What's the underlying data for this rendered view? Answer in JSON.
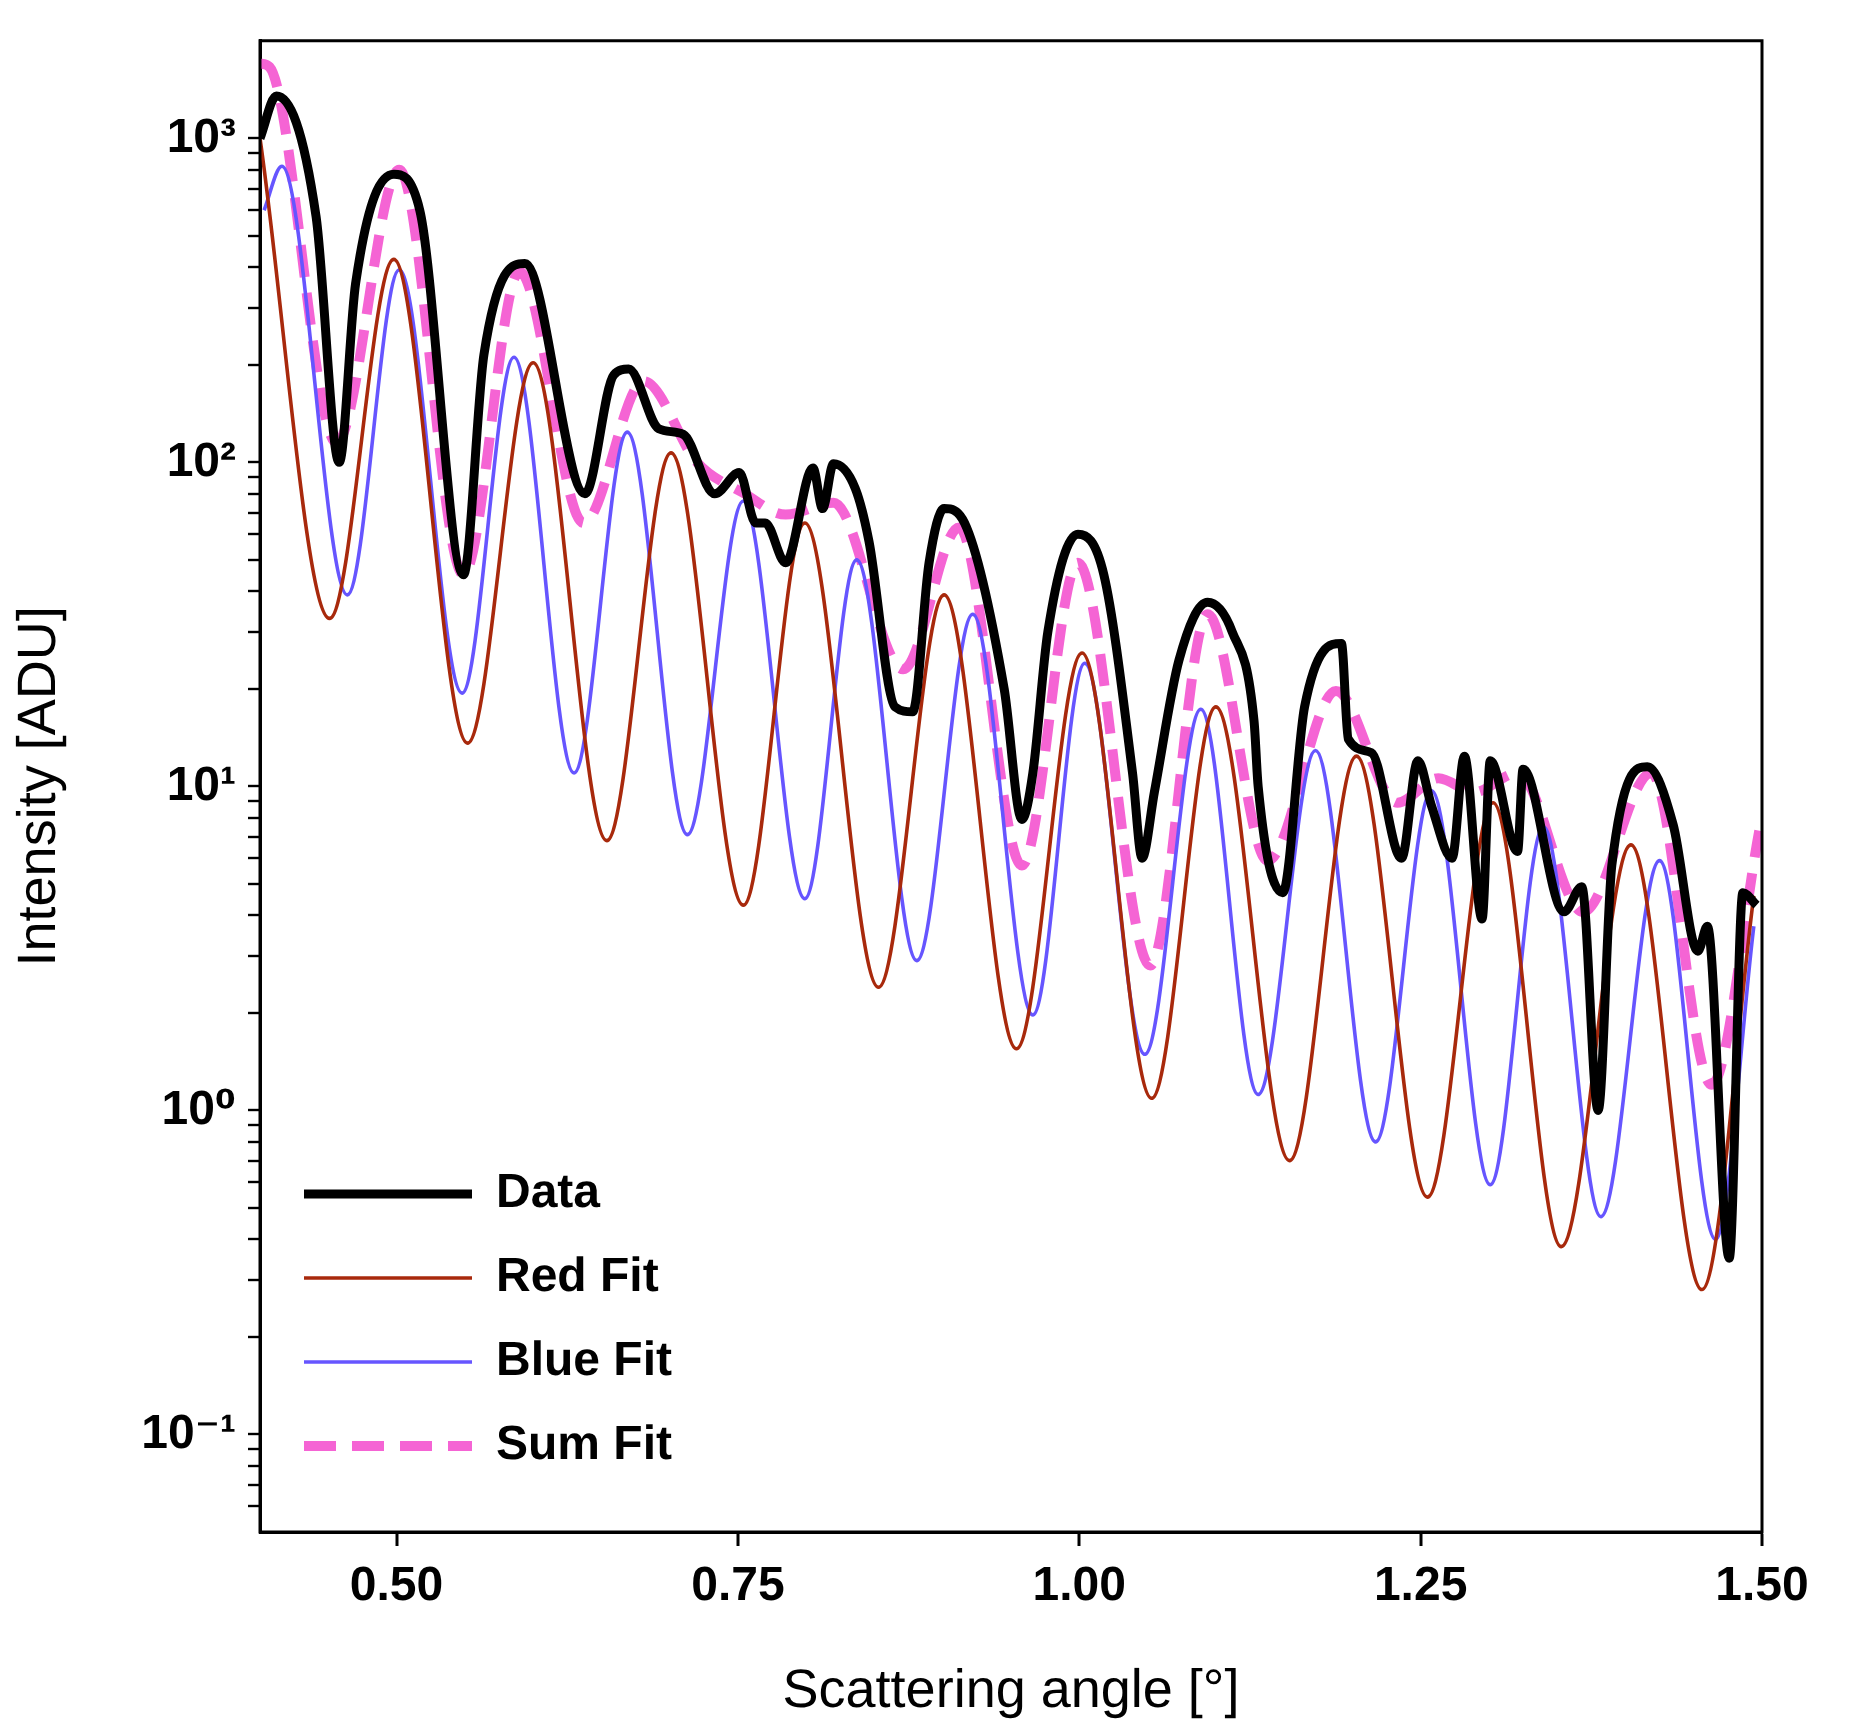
{
  "chart_data": {
    "type": "line",
    "xlabel": "Scattering angle [°]",
    "ylabel": "Intensity [ADU]",
    "log": "y",
    "grid": false,
    "legend": "bottom left",
    "marker": "none",
    "xlim": [
      0.4,
      1.5
    ],
    "ylim": [
      0.05,
      2000
    ],
    "xticks": [
      {
        "value": 0.5,
        "label": "0.50"
      },
      {
        "value": 0.75,
        "label": "0.75"
      },
      {
        "value": 1.0,
        "label": "1.00"
      },
      {
        "value": 1.25,
        "label": "1.25"
      },
      {
        "value": 1.5,
        "label": "1.50"
      }
    ],
    "yticks": [
      {
        "value": 0.06,
        "label": null
      },
      {
        "value": 0.07,
        "label": null
      },
      {
        "value": 0.08,
        "label": null
      },
      {
        "value": 0.09,
        "label": null
      },
      {
        "value": 0.1,
        "label": "10⁻¹"
      },
      {
        "value": 0.2,
        "label": null
      },
      {
        "value": 0.3,
        "label": null
      },
      {
        "value": 0.4,
        "label": null
      },
      {
        "value": 0.5,
        "label": null
      },
      {
        "value": 0.6,
        "label": null
      },
      {
        "value": 0.7,
        "label": null
      },
      {
        "value": 0.8,
        "label": null
      },
      {
        "value": 0.9,
        "label": null
      },
      {
        "value": 1,
        "label": "10⁰"
      },
      {
        "value": 2,
        "label": null
      },
      {
        "value": 3,
        "label": null
      },
      {
        "value": 4,
        "label": null
      },
      {
        "value": 5,
        "label": null
      },
      {
        "value": 6,
        "label": null
      },
      {
        "value": 7,
        "label": null
      },
      {
        "value": 8,
        "label": null
      },
      {
        "value": 9,
        "label": null
      },
      {
        "value": 10,
        "label": "10¹"
      },
      {
        "value": 20,
        "label": null
      },
      {
        "value": 30,
        "label": null
      },
      {
        "value": 40,
        "label": null
      },
      {
        "value": 50,
        "label": null
      },
      {
        "value": 60,
        "label": null
      },
      {
        "value": 70,
        "label": null
      },
      {
        "value": 80,
        "label": null
      },
      {
        "value": 90,
        "label": null
      },
      {
        "value": 100,
        "label": "10²"
      },
      {
        "value": 200,
        "label": null
      },
      {
        "value": 300,
        "label": null
      },
      {
        "value": 400,
        "label": null
      },
      {
        "value": 500,
        "label": null
      },
      {
        "value": 600,
        "label": null
      },
      {
        "value": 700,
        "label": null
      },
      {
        "value": 800,
        "label": null
      },
      {
        "value": 900,
        "label": null
      },
      {
        "value": 1000,
        "label": "10³"
      }
    ],
    "series": [
      {
        "name": "Data",
        "color": "#000000",
        "line_style": "solid",
        "x": [
          0.4,
          0.412,
          0.441,
          0.458,
          0.47,
          0.498,
          0.517,
          0.549,
          0.564,
          0.594,
          0.638,
          0.659,
          0.67,
          0.692,
          0.71,
          0.733,
          0.751,
          0.763,
          0.77,
          0.785,
          0.805,
          0.812,
          0.82,
          0.836,
          0.846,
          0.865,
          0.878,
          0.89,
          0.901,
          0.916,
          0.945,
          0.958,
          0.966,
          0.977,
          0.999,
          1.018,
          1.039,
          1.046,
          1.055,
          1.073,
          1.094,
          1.112,
          1.128,
          1.131,
          1.149,
          1.165,
          1.192,
          1.197,
          1.214,
          1.236,
          1.248,
          1.258,
          1.273,
          1.282,
          1.295,
          1.301,
          1.321,
          1.325,
          1.355,
          1.368,
          1.38,
          1.39,
          1.416,
          1.435,
          1.453,
          1.46,
          1.476,
          1.486,
          1.496
        ],
        "values": [
          1000,
          1350,
          576,
          100,
          356,
          775,
          600,
          45,
          215,
          411,
          80,
          186,
          194,
          127,
          122,
          80,
          93,
          65,
          65,
          49,
          96,
          72,
          99,
          83,
          57,
          17.6,
          17,
          49,
          72,
          65,
          20,
          7.9,
          11,
          30,
          60,
          45,
          11,
          6,
          9.6,
          24.5,
          37,
          30,
          15.9,
          10,
          4.7,
          17.6,
          27.6,
          14,
          12.7,
          6,
          12,
          8.7,
          6,
          12.4,
          3.9,
          12,
          6.3,
          11.3,
          4.1,
          4.9,
          1.0,
          5.7,
          11.5,
          7.6,
          3.1,
          3.7,
          0.35,
          4.7,
          4.3
        ]
      },
      {
        "name": "Red Fit",
        "color": "#a8290c",
        "line_style": "solid",
        "x": [
          0.4,
          0.451,
          0.498,
          0.552,
          0.6,
          0.654,
          0.701,
          0.754,
          0.799,
          0.853,
          0.901,
          0.954,
          1.002,
          1.053,
          1.1,
          1.154,
          1.203,
          1.255,
          1.303,
          1.353,
          1.404,
          1.456,
          1.494
        ],
        "values": [
          1000,
          33,
          423,
          13.6,
          203,
          6.8,
          107,
          4.3,
          65,
          2.4,
          39,
          1.55,
          25.8,
          1.09,
          17.6,
          0.7,
          12.4,
          0.54,
          8.9,
          0.38,
          6.6,
          0.28,
          4.6
        ]
      },
      {
        "name": "Blue Fit",
        "color": "#6655ff",
        "line_style": "solid",
        "x": [
          0.403,
          0.416,
          0.464,
          0.502,
          0.548,
          0.586,
          0.63,
          0.669,
          0.713,
          0.754,
          0.799,
          0.837,
          0.881,
          0.922,
          0.966,
          1.004,
          1.048,
          1.089,
          1.131,
          1.173,
          1.217,
          1.258,
          1.301,
          1.34,
          1.382,
          1.425,
          1.466,
          1.494
        ],
        "values": [
          600,
          820,
          39,
          393,
          19.4,
          211,
          11,
          124,
          7.1,
          76,
          4.5,
          50,
          2.9,
          34,
          1.97,
          24,
          1.49,
          17.3,
          1.12,
          12.9,
          0.8,
          9.7,
          0.59,
          7.5,
          0.47,
          5.9,
          0.4,
          3.7
        ]
      },
      {
        "name": "Sum Fit",
        "color": "#f564d4",
        "line_style": "dashed",
        "x": [
          0.4,
          0.407,
          0.456,
          0.502,
          0.549,
          0.59,
          0.637,
          0.681,
          0.72,
          0.755,
          0.785,
          0.82,
          0.871,
          0.912,
          0.958,
          0.999,
          1.052,
          1.094,
          1.138,
          1.188,
          1.233,
          1.263,
          1.289,
          1.321,
          1.369,
          1.419,
          1.463,
          1.498
        ],
        "values": [
          1700,
          1660,
          115,
          800,
          45,
          388,
          65,
          178,
          100,
          80,
          69,
          75,
          23,
          63,
          5.7,
          49,
          2.8,
          34,
          5.9,
          19.7,
          8.9,
          10.6,
          9.6,
          11,
          4.1,
          11,
          1.2,
          7.3
        ]
      }
    ]
  }
}
